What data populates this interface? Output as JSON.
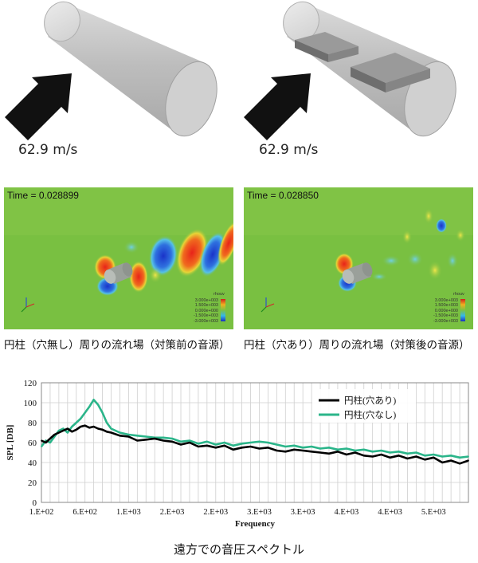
{
  "top_row": {
    "left": {
      "velocity_label": "62.9 m/s"
    },
    "right": {
      "velocity_label": "62.9 m/s"
    }
  },
  "sim_row": {
    "left": {
      "time_label": "Time = 0.028899",
      "caption": "円柱（穴無し）周りの流れ場（対策前の音源）",
      "colorbar": {
        "title": "rhouv",
        "ticks": [
          "3.000e+003",
          "1.500e+003",
          "0.000e+000",
          "-1.500e+003",
          "-3.000e+003"
        ]
      }
    },
    "right": {
      "time_label": "Time = 0.028850",
      "caption": "円柱（穴あり）周りの流れ場（対策後の音源）",
      "colorbar": {
        "title": "rhouv",
        "ticks": [
          "3.000e+003",
          "1.500e+003",
          "0.000e+000",
          "-1.500e+003",
          "-3.000e+003"
        ]
      }
    }
  },
  "bottom_caption": "遠方での音圧スペクトル",
  "chart_data": {
    "type": "line",
    "ylabel": "SPL [DB]",
    "xlabel": "Frequency",
    "x_tick_labels": [
      "1.E+02",
      "6.E+02",
      "1.E+03",
      "2.E+03",
      "2.E+03",
      "3.E+03",
      "3.E+03",
      "4.E+03",
      "4.E+03",
      "5.E+03"
    ],
    "x_tick_values": [
      100,
      600,
      1100,
      1600,
      2100,
      2600,
      3100,
      3600,
      4100,
      4600
    ],
    "xlim": [
      100,
      5000
    ],
    "y_ticks": [
      0,
      20,
      40,
      60,
      80,
      100,
      120
    ],
    "ylim": [
      0,
      120
    ],
    "grid": true,
    "legend_position": "top-right",
    "colors": {
      "with_holes": "#000000",
      "without_holes": "#2bb58a"
    },
    "series": [
      {
        "name": "円柱(穴あり)",
        "x": [
          100,
          150,
          200,
          250,
          300,
          350,
          400,
          450,
          500,
          550,
          600,
          650,
          700,
          750,
          800,
          850,
          900,
          1000,
          1100,
          1200,
          1300,
          1400,
          1500,
          1600,
          1700,
          1800,
          1900,
          2000,
          2100,
          2200,
          2300,
          2400,
          2500,
          2600,
          2700,
          2800,
          2900,
          3000,
          3100,
          3200,
          3300,
          3400,
          3500,
          3600,
          3700,
          3800,
          3900,
          4000,
          4100,
          4200,
          4300,
          4400,
          4500,
          4600,
          4700,
          4800,
          4900,
          5000
        ],
        "values": [
          62,
          60,
          64,
          68,
          70,
          72,
          74,
          71,
          73,
          76,
          77,
          75,
          76,
          74,
          73,
          71,
          70,
          67,
          66,
          62,
          63,
          64,
          62,
          61,
          58,
          60,
          56,
          57,
          55,
          57,
          53,
          55,
          56,
          54,
          55,
          52,
          51,
          53,
          52,
          51,
          50,
          49,
          51,
          48,
          50,
          47,
          46,
          48,
          45,
          47,
          44,
          46,
          43,
          45,
          40,
          42,
          39,
          42
        ]
      },
      {
        "name": "円柱(穴なし)",
        "x": [
          100,
          150,
          200,
          250,
          300,
          350,
          400,
          450,
          500,
          550,
          600,
          650,
          700,
          750,
          800,
          850,
          900,
          1000,
          1100,
          1200,
          1300,
          1400,
          1500,
          1600,
          1700,
          1800,
          1900,
          2000,
          2100,
          2200,
          2300,
          2400,
          2500,
          2600,
          2700,
          2800,
          2900,
          3000,
          3100,
          3200,
          3300,
          3400,
          3500,
          3600,
          3700,
          3800,
          3900,
          4000,
          4100,
          4200,
          4300,
          4400,
          4500,
          4600,
          4700,
          4800,
          4900,
          5000
        ],
        "values": [
          56,
          62,
          60,
          66,
          72,
          74,
          70,
          76,
          80,
          84,
          90,
          96,
          103,
          98,
          90,
          80,
          74,
          70,
          68,
          67,
          66,
          65,
          65,
          64,
          61,
          62,
          59,
          61,
          58,
          60,
          57,
          59,
          60,
          61,
          60,
          58,
          56,
          57,
          55,
          56,
          54,
          55,
          53,
          54,
          52,
          53,
          51,
          52,
          50,
          51,
          49,
          50,
          47,
          48,
          46,
          47,
          45,
          46
        ]
      }
    ]
  }
}
